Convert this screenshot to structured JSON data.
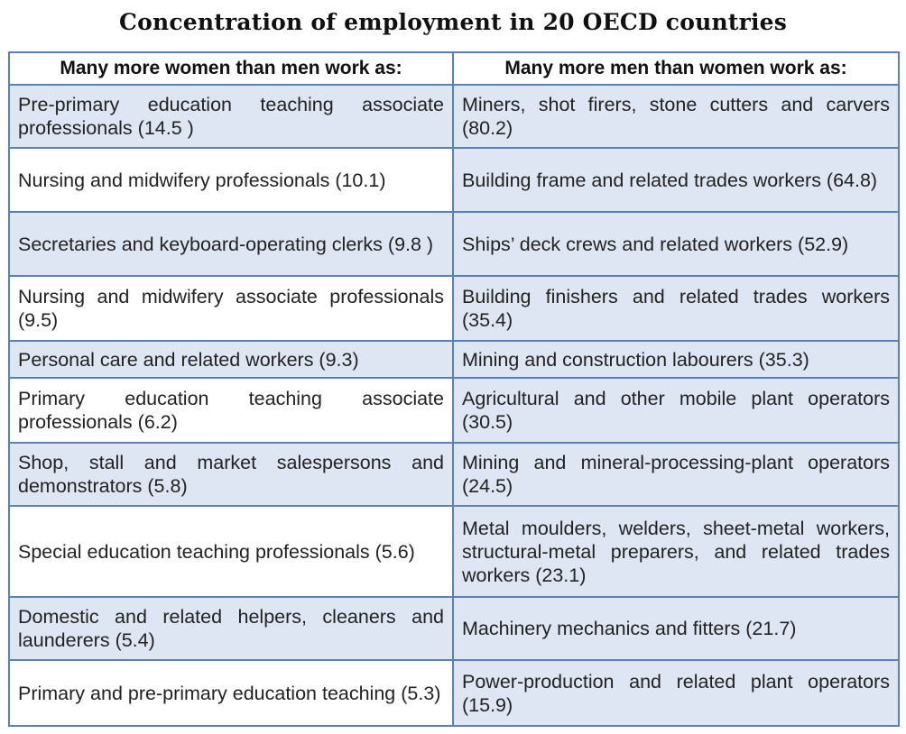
{
  "title": "Concentration of employment in 20 OECD countries",
  "headers": {
    "women": "Many more women than men work as:",
    "men": "Many more men than women work as:"
  },
  "rows": [
    {
      "women": "Pre-primary education teaching associate professionals (14.5 )",
      "men": "Miners, shot firers, stone cutters and carvers (80.2)"
    },
    {
      "women": "Nursing and midwifery professionals (10.1)",
      "men": "Building frame and related trades workers (64.8)"
    },
    {
      "women": "Secretaries and keyboard-operating clerks (9.8 )",
      "men": "Ships’ deck crews and related workers (52.9)"
    },
    {
      "women": "Nursing and midwifery associate professionals (9.5)",
      "men": "Building finishers and related trades workers (35.4)"
    },
    {
      "women": "Personal care and related workers (9.3)",
      "men": "Mining and construction labourers (35.3)"
    },
    {
      "women": "Primary education teaching associate professionals (6.2)",
      "men": "Agricultural and other mobile plant operators (30.5)"
    },
    {
      "women": "Shop, stall and market salespersons and demonstrators (5.8)",
      "men": "Mining and mineral-processing-plant operators (24.5)"
    },
    {
      "women": "Special education teaching professionals (5.6)",
      "men": "Metal moulders, welders, sheet-metal workers, structural-metal preparers, and related trades workers (23.1)"
    },
    {
      "women": "Domestic and related helpers, cleaners and launderers (5.4)",
      "men": "Machinery mechanics and fitters (21.7)"
    },
    {
      "women": "Primary and pre-primary education teaching (5.3)",
      "men": "Power-production and related plant operators (15.9)"
    }
  ],
  "colors": {
    "border": "#5b7fb8",
    "shade": "#dfe6f3"
  }
}
